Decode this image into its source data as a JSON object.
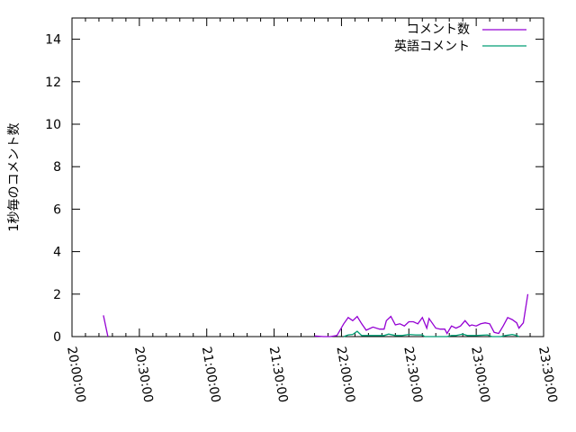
{
  "chart_data": {
    "type": "line",
    "title": "",
    "xlabel": "",
    "ylabel": "1秒毎のコメント数",
    "xlim": [
      "20:00:00",
      "23:30:00"
    ],
    "ylim": [
      0,
      15
    ],
    "x_ticks": [
      "20:00:00",
      "20:30:00",
      "21:00:00",
      "21:30:00",
      "22:00:00",
      "22:30:00",
      "23:00:00",
      "23:30:00"
    ],
    "y_ticks": [
      "0",
      "2",
      "4",
      "6",
      "8",
      "10",
      "12",
      "14"
    ],
    "grid": false,
    "legend_position": "top-right",
    "series": [
      {
        "name": "コメント数",
        "color": "#9400d3",
        "points": [
          [
            "20:14:00",
            1.0
          ],
          [
            "20:16:00",
            0
          ],
          null,
          [
            "21:48:00",
            0.03
          ],
          [
            "21:52:00",
            0
          ],
          [
            "21:55:00",
            0
          ],
          [
            "21:58:00",
            0.05
          ],
          [
            "22:01:00",
            0.6
          ],
          [
            "22:03:00",
            0.9
          ],
          [
            "22:05:00",
            0.75
          ],
          [
            "22:07:00",
            0.95
          ],
          [
            "22:09:00",
            0.6
          ],
          [
            "22:11:00",
            0.3
          ],
          [
            "22:14:00",
            0.45
          ],
          [
            "22:17:00",
            0.35
          ],
          [
            "22:19:00",
            0.35
          ],
          [
            "22:20:00",
            0.75
          ],
          [
            "22:22:00",
            0.95
          ],
          [
            "22:24:00",
            0.55
          ],
          [
            "22:26:00",
            0.6
          ],
          [
            "22:28:00",
            0.5
          ],
          [
            "22:30:00",
            0.7
          ],
          [
            "22:32:00",
            0.7
          ],
          [
            "22:34:00",
            0.6
          ],
          [
            "22:36:00",
            0.9
          ],
          [
            "22:38:00",
            0.4
          ],
          [
            "22:39:00",
            0.85
          ],
          [
            "22:42:00",
            0.4
          ],
          [
            "22:44:00",
            0.35
          ],
          [
            "22:46:00",
            0.35
          ],
          [
            "22:47:00",
            0.15
          ],
          [
            "22:49:00",
            0.5
          ],
          [
            "22:51:00",
            0.4
          ],
          [
            "22:53:00",
            0.5
          ],
          [
            "22:55:00",
            0.75
          ],
          [
            "22:57:00",
            0.5
          ],
          [
            "22:58:00",
            0.55
          ],
          [
            "23:00:00",
            0.5
          ],
          [
            "23:02:00",
            0.6
          ],
          [
            "23:04:00",
            0.65
          ],
          [
            "23:06:00",
            0.6
          ],
          [
            "23:08:00",
            0.2
          ],
          [
            "23:10:00",
            0.15
          ],
          [
            "23:12:00",
            0.5
          ],
          [
            "23:14:00",
            0.9
          ],
          [
            "23:16:00",
            0.8
          ],
          [
            "23:18:00",
            0.65
          ],
          [
            "23:19:00",
            0.4
          ],
          [
            "23:21:00",
            0.65
          ],
          [
            "23:23:00",
            2.0
          ]
        ]
      },
      {
        "name": "英語コメント",
        "color": "#009e73",
        "points": [
          [
            "22:01:00",
            0
          ],
          [
            "22:03:00",
            0.08
          ],
          [
            "22:05:00",
            0.1
          ],
          [
            "22:07:00",
            0.25
          ],
          [
            "22:09:00",
            0.05
          ],
          [
            "22:13:00",
            0.05
          ],
          [
            "22:17:00",
            0.05
          ],
          [
            "22:19:00",
            0.05
          ],
          [
            "22:21:00",
            0.12
          ],
          [
            "22:24:00",
            0.05
          ],
          [
            "22:27:00",
            0.05
          ],
          [
            "22:30:00",
            0.1
          ],
          [
            "22:33:00",
            0.08
          ],
          [
            "22:36:00",
            0.08
          ],
          [
            "22:37:00",
            0
          ],
          [
            "22:40:00",
            0
          ],
          [
            "22:47:00",
            0
          ],
          [
            "22:49:00",
            0.05
          ],
          [
            "22:51:00",
            0.05
          ],
          [
            "22:54:00",
            0.12
          ],
          [
            "22:56:00",
            0.05
          ],
          [
            "23:00:00",
            0.05
          ],
          [
            "23:05:00",
            0.08
          ],
          [
            "23:07:00",
            0
          ],
          [
            "23:11:00",
            0
          ],
          [
            "23:13:00",
            0.05
          ],
          [
            "23:16:00",
            0.1
          ],
          [
            "23:18:00",
            0.05
          ],
          [
            "23:19:00",
            0
          ]
        ]
      }
    ]
  }
}
